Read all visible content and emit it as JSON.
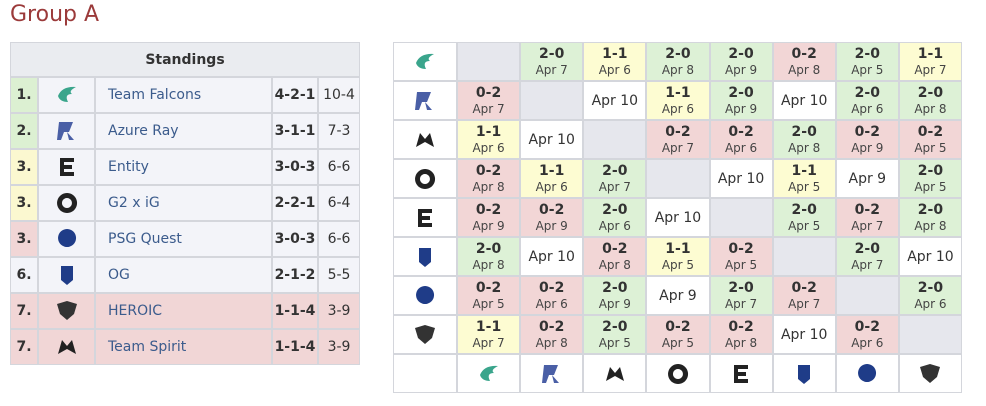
{
  "title": "Group A",
  "standings": {
    "header": "Standings",
    "rows": [
      {
        "rank": "1.",
        "team": "Team Falcons",
        "record": "4-2-1",
        "games": "10-4",
        "color": "#dcf0d2",
        "row_color": "#f3f4f9"
      },
      {
        "rank": "2.",
        "team": "Azure Ray",
        "record": "3-1-1",
        "games": "7-3",
        "color": "#dcf0d2",
        "row_color": "#f3f4f9"
      },
      {
        "rank": "3.",
        "team": "Entity",
        "record": "3-0-3",
        "games": "6-6",
        "color": "#fbf8d0",
        "row_color": "#f3f4f9"
      },
      {
        "rank": "3.",
        "team": "G2 x iG",
        "record": "2-2-1",
        "games": "6-4",
        "color": "#fbf8d0",
        "row_color": "#f3f4f9"
      },
      {
        "rank": "3.",
        "team": "PSG Quest",
        "record": "3-0-3",
        "games": "6-6",
        "color": "#f1d6d6",
        "row_color": "#f3f4f9"
      },
      {
        "rank": "6.",
        "team": "OG",
        "record": "2-1-2",
        "games": "5-5",
        "color": "#f3f4f9",
        "row_color": "#f3f4f9"
      },
      {
        "rank": "7.",
        "team": "HEROIC",
        "record": "1-1-4",
        "games": "3-9",
        "color": "#f1d6d6",
        "row_color": "#f1d6d6"
      },
      {
        "rank": "7.",
        "team": "Team Spirit",
        "record": "1-1-4",
        "games": "3-9",
        "color": "#f1d6d6",
        "row_color": "#f1d6d6"
      }
    ]
  },
  "crosstable": {
    "rows": [
      [
        null,
        {
          "score": "2-0",
          "date": "Apr 7"
        },
        {
          "score": "1-1",
          "date": "Apr 6"
        },
        {
          "score": "2-0",
          "date": "Apr 8"
        },
        {
          "score": "2-0",
          "date": "Apr 9"
        },
        {
          "score": "0-2",
          "date": "Apr 8"
        },
        {
          "score": "2-0",
          "date": "Apr 5"
        },
        {
          "score": "1-1",
          "date": "Apr 7"
        }
      ],
      [
        {
          "score": "0-2",
          "date": "Apr 7"
        },
        null,
        {
          "date": "Apr 10"
        },
        {
          "score": "1-1",
          "date": "Apr 6"
        },
        {
          "score": "2-0",
          "date": "Apr 9"
        },
        {
          "date": "Apr 10"
        },
        {
          "score": "2-0",
          "date": "Apr 6"
        },
        {
          "score": "2-0",
          "date": "Apr 8"
        }
      ],
      [
        {
          "score": "1-1",
          "date": "Apr 6"
        },
        {
          "date": "Apr 10"
        },
        null,
        {
          "score": "0-2",
          "date": "Apr 7"
        },
        {
          "score": "0-2",
          "date": "Apr 6"
        },
        {
          "score": "2-0",
          "date": "Apr 8"
        },
        {
          "score": "0-2",
          "date": "Apr 9"
        },
        {
          "score": "0-2",
          "date": "Apr 5"
        }
      ],
      [
        {
          "score": "0-2",
          "date": "Apr 8"
        },
        {
          "score": "1-1",
          "date": "Apr 6"
        },
        {
          "score": "2-0",
          "date": "Apr 7"
        },
        null,
        {
          "date": "Apr 10"
        },
        {
          "score": "1-1",
          "date": "Apr 5"
        },
        {
          "date": "Apr 9"
        },
        {
          "score": "2-0",
          "date": "Apr 5"
        }
      ],
      [
        {
          "score": "0-2",
          "date": "Apr 9"
        },
        {
          "score": "0-2",
          "date": "Apr 9"
        },
        {
          "score": "2-0",
          "date": "Apr 6"
        },
        {
          "date": "Apr 10"
        },
        null,
        {
          "score": "2-0",
          "date": "Apr 5"
        },
        {
          "score": "0-2",
          "date": "Apr 7"
        },
        {
          "score": "2-0",
          "date": "Apr 8"
        }
      ],
      [
        {
          "score": "2-0",
          "date": "Apr 8"
        },
        {
          "date": "Apr 10"
        },
        {
          "score": "0-2",
          "date": "Apr 8"
        },
        {
          "score": "1-1",
          "date": "Apr 5"
        },
        {
          "score": "0-2",
          "date": "Apr 5"
        },
        null,
        {
          "score": "2-0",
          "date": "Apr 7"
        },
        {
          "date": "Apr 10"
        }
      ],
      [
        {
          "score": "0-2",
          "date": "Apr 5"
        },
        {
          "score": "0-2",
          "date": "Apr 6"
        },
        {
          "score": "2-0",
          "date": "Apr 9"
        },
        {
          "date": "Apr 9"
        },
        {
          "score": "2-0",
          "date": "Apr 7"
        },
        {
          "score": "0-2",
          "date": "Apr 7"
        },
        null,
        {
          "score": "2-0",
          "date": "Apr 6"
        }
      ],
      [
        {
          "score": "1-1",
          "date": "Apr 7"
        },
        {
          "score": "0-2",
          "date": "Apr 8"
        },
        {
          "score": "2-0",
          "date": "Apr 5"
        },
        {
          "score": "0-2",
          "date": "Apr 5"
        },
        {
          "score": "0-2",
          "date": "Apr 8"
        },
        {
          "date": "Apr 10"
        },
        {
          "score": "0-2",
          "date": "Apr 6"
        },
        null
      ]
    ]
  },
  "colors": {
    "2-0": "#ddf1d6",
    "1-1": "#fdfcd2",
    "0-2": "#f2d6d6",
    "unplayed": "#ffffff",
    "self": "#e6e7ed"
  }
}
